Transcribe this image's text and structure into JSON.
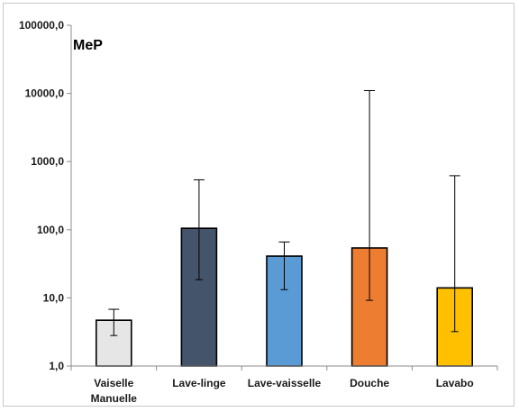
{
  "chart_data": {
    "type": "bar",
    "annotation": "MeP",
    "y_scale": "log",
    "ylim": [
      1,
      100000
    ],
    "y_ticks": [
      {
        "value": 1,
        "label": "1,0"
      },
      {
        "value": 10,
        "label": "10,0"
      },
      {
        "value": 100,
        "label": "100,0"
      },
      {
        "value": 1000,
        "label": "1000,0"
      },
      {
        "value": 10000,
        "label": "10000,0"
      },
      {
        "value": 100000,
        "label": "100000,0"
      }
    ],
    "grid": false,
    "legend": "none",
    "categories": [
      {
        "lines": [
          "Vaiselle",
          "Manuelle"
        ]
      },
      {
        "lines": [
          "Lave-linge"
        ]
      },
      {
        "lines": [
          "Lave-vaisselle"
        ]
      },
      {
        "lines": [
          "Douche"
        ]
      },
      {
        "lines": [
          "Lavabo"
        ]
      }
    ],
    "values": [
      4.7,
      105,
      41,
      54,
      14
    ],
    "error_low": [
      2.8,
      18.5,
      13.2,
      9.2,
      3.2
    ],
    "error_high": [
      6.8,
      540,
      66,
      11000,
      620
    ],
    "colors": [
      "#e6e6e6",
      "#44546a",
      "#5b9bd5",
      "#ed7d31",
      "#ffc000"
    ]
  }
}
